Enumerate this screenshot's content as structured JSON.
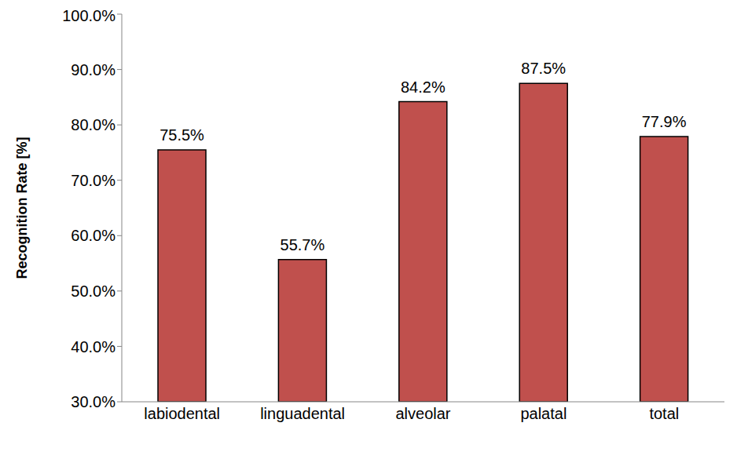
{
  "chart_data": {
    "type": "bar",
    "y_label": "Recognition Rate [%]",
    "categories": [
      "labiodental",
      "linguadental",
      "alveolar",
      "palatal",
      "total"
    ],
    "values": [
      75.5,
      55.7,
      84.2,
      87.5,
      77.9
    ],
    "value_labels": [
      "75.5%",
      "55.7%",
      "84.2%",
      "87.5%",
      "77.9%"
    ],
    "color": "#c0504d",
    "ylim": [
      30,
      100
    ],
    "yticks": [
      {
        "value": 30,
        "label": "30.0%"
      },
      {
        "value": 40,
        "label": "40.0%"
      },
      {
        "value": 50,
        "label": "50.0%"
      },
      {
        "value": 60,
        "label": "60.0%"
      },
      {
        "value": 70,
        "label": "70.0%"
      },
      {
        "value": 80,
        "label": "80.0%"
      },
      {
        "value": 90,
        "label": "90.0%"
      },
      {
        "value": 100,
        "label": "100.0%"
      }
    ],
    "grid": false,
    "data_labels": true
  }
}
